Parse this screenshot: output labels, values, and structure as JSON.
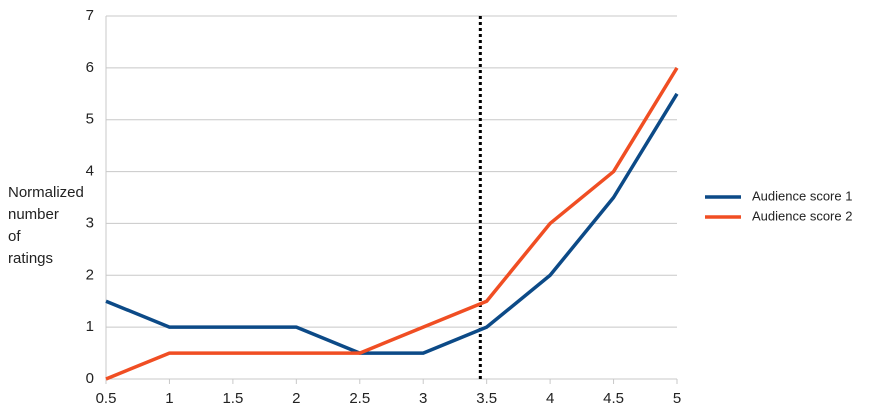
{
  "chart_data": {
    "type": "line",
    "ylabel": [
      "Normalized",
      "number",
      "of",
      "ratings"
    ],
    "x": [
      0.5,
      1,
      1.5,
      2,
      2.5,
      3,
      3.5,
      4,
      4.5,
      5
    ],
    "series": [
      {
        "name": "Audience score 1",
        "color": "#0c4a87",
        "values": [
          1.5,
          1,
          1,
          1,
          0.5,
          0.5,
          1,
          2,
          3.5,
          5.5
        ]
      },
      {
        "name": "Audience score 2",
        "color": "#f04e23",
        "values": [
          0,
          0.5,
          0.5,
          0.5,
          0.5,
          1,
          1.5,
          3,
          4,
          6
        ]
      }
    ],
    "xlim": [
      0.5,
      5
    ],
    "xticks": [
      0.5,
      1,
      1.5,
      2,
      2.5,
      3,
      3.5,
      4,
      4.5,
      5
    ],
    "ylim": [
      0,
      7
    ],
    "yticks": [
      0,
      1,
      2,
      3,
      4,
      5,
      6,
      7
    ],
    "grid": true,
    "legend": "right",
    "vline": 3.45
  }
}
